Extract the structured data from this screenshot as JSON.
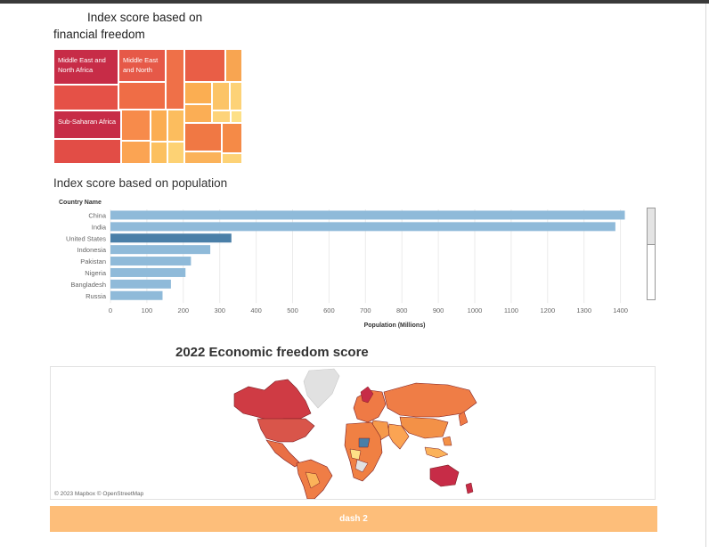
{
  "treemap": {
    "title_line1": "Index score based on",
    "title_line2": "financial freedom",
    "labels": {
      "mena": "Middle East and North Africa",
      "mena2": "Middle East and North",
      "ssa": "Sub-Saharan Africa"
    }
  },
  "bar_section": {
    "title": "Index score based on population",
    "column_header": "Country Name"
  },
  "chart_data": {
    "type": "bar",
    "orientation": "horizontal",
    "categories": [
      "China",
      "India",
      "United States",
      "Indonesia",
      "Pakistan",
      "Nigeria",
      "Bangladesh",
      "Russia"
    ],
    "values": [
      1412,
      1386,
      332,
      274,
      221,
      206,
      166,
      143
    ],
    "xlabel": "Population (Millions)",
    "ylabel": "Country Name",
    "xlim": [
      0,
      1450
    ],
    "xticks": [
      0,
      100,
      200,
      300,
      400,
      500,
      600,
      700,
      800,
      900,
      1000,
      1100,
      1200,
      1300,
      1400
    ],
    "grid": true,
    "highlighted_category": "United States",
    "colors": {
      "bar": "#8fbad9",
      "highlight": "#4a7fa8"
    }
  },
  "map_section": {
    "title": "2022 Economic freedom score",
    "attribution": "© 2023 Mapbox © OpenStreetMap"
  },
  "dash_button": {
    "label": "dash 2",
    "color": "#fdbe7a"
  }
}
